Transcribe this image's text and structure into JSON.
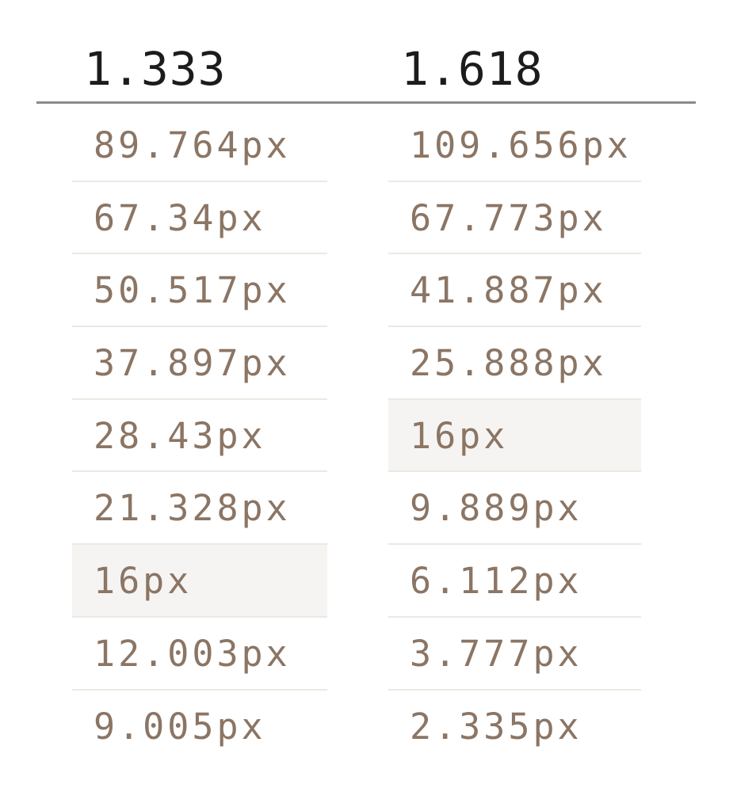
{
  "columns": [
    {
      "ratio": "1.333",
      "values": [
        "89.764px",
        "67.34px",
        "50.517px",
        "37.897px",
        "28.43px",
        "21.328px",
        "16px",
        "12.003px",
        "9.005px"
      ],
      "base_index": 6
    },
    {
      "ratio": "1.618",
      "values": [
        "109.656px",
        "67.773px",
        "41.887px",
        "25.888px",
        "16px",
        "9.889px",
        "6.112px",
        "3.777px",
        "2.335px"
      ],
      "base_index": 4
    }
  ],
  "colors": {
    "header_text": "#1c1c1c",
    "value_text": "#8b7564",
    "rule": "#8a8a8a",
    "row_divider": "#ece8e2",
    "base_highlight": "#f5f4f2"
  }
}
